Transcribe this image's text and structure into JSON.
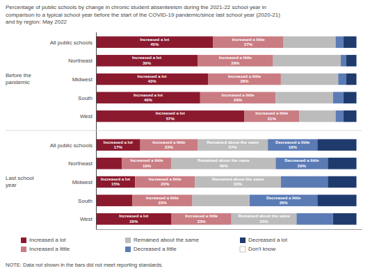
{
  "chart_data": {
    "type": "bar",
    "orientation": "horizontal",
    "stacked": true,
    "title": "Percentage of public schools by change in chronic student absenteeism during the 2021-22 school year in\ncomparison to a typical school year before the start of the COVID-19 pandemic/since last school year (2020-21)\nand by region: May 2022",
    "note": "NOTE: Data not shown in the bars did not meet reporting standards.",
    "categories": [
      "All public schools",
      "Northeast",
      "Midwest",
      "South",
      "West",
      "All public schools",
      "Northeast",
      "Midwest",
      "South",
      "West"
    ],
    "category_groups": [
      "Before the\npandemic",
      "Before the\npandemic",
      "Before the\npandemic",
      "Before the\npandemic",
      "Before the\npandemic",
      "Last school\nyear",
      "Last school\nyear",
      "Last school\nyear",
      "Last school\nyear",
      "Last school\nyear"
    ],
    "xlim": [
      0,
      102
    ],
    "tick_labels": "y",
    "grid": false,
    "legend": "bottom",
    "data_labels": true,
    "series": [
      {
        "name": "Increased a lot",
        "color": "#8B1A2F",
        "values": [
          45,
          39,
          43,
          40,
          57,
          17,
          10,
          15,
          14,
          29
        ],
        "value_labels": [
          "Increased a lot\n45%",
          "Increased a lot\n39%",
          "Increased a lot\n43%",
          "Increased a lot\n40%",
          "Increased a lot\n57%",
          "Increased a lot\n17%",
          null,
          "Increased a lot\n15%",
          null,
          "Increased a lot\n29%"
        ]
      },
      {
        "name": "Increased a little",
        "color": "#C97C82",
        "values": [
          27,
          29,
          28,
          29,
          21,
          22,
          19,
          23,
          23,
          23
        ],
        "value_labels": [
          "Increased a little\n27%",
          "Increased a little\n29%",
          "Increased a little\n28%",
          "Increased a little\n29%",
          "Increased a little\n21%",
          "Increased a little\n22%",
          "Increased a little\n19%",
          "Increased a little\n23%",
          "Increased a little\n23%",
          "Increased a little\n23%"
        ]
      },
      {
        "name": "Remained about the same",
        "color": "#BCBCBC",
        "values": [
          20,
          26,
          22,
          22,
          14,
          27,
          40,
          33,
          22,
          25
        ],
        "value_labels": [
          null,
          null,
          null,
          null,
          null,
          "Remained about the same\n27%",
          "Remained about the same\n40%",
          "Remained about the same\n33%",
          null,
          "Remained about the same\n25%"
        ]
      },
      {
        "name": "Decreased a little",
        "color": "#5B7BB5",
        "values": [
          3,
          2,
          3,
          4,
          3,
          19,
          20,
          18,
          26,
          14
        ],
        "value_labels": [
          null,
          null,
          null,
          null,
          null,
          "Decreased a little\n19%",
          "Decreased a little\n20%",
          null,
          "Decreased a little\n26%",
          null
        ]
      },
      {
        "name": "Decreased a lot",
        "color": "#1F3B6E",
        "values": [
          5,
          4,
          4,
          5,
          5,
          15,
          11,
          11,
          15,
          9
        ]
      },
      {
        "name": "Don't know",
        "color": "#FFFFFF",
        "values": [
          null,
          null,
          null,
          null,
          null,
          null,
          null,
          null,
          null,
          null
        ]
      }
    ]
  }
}
